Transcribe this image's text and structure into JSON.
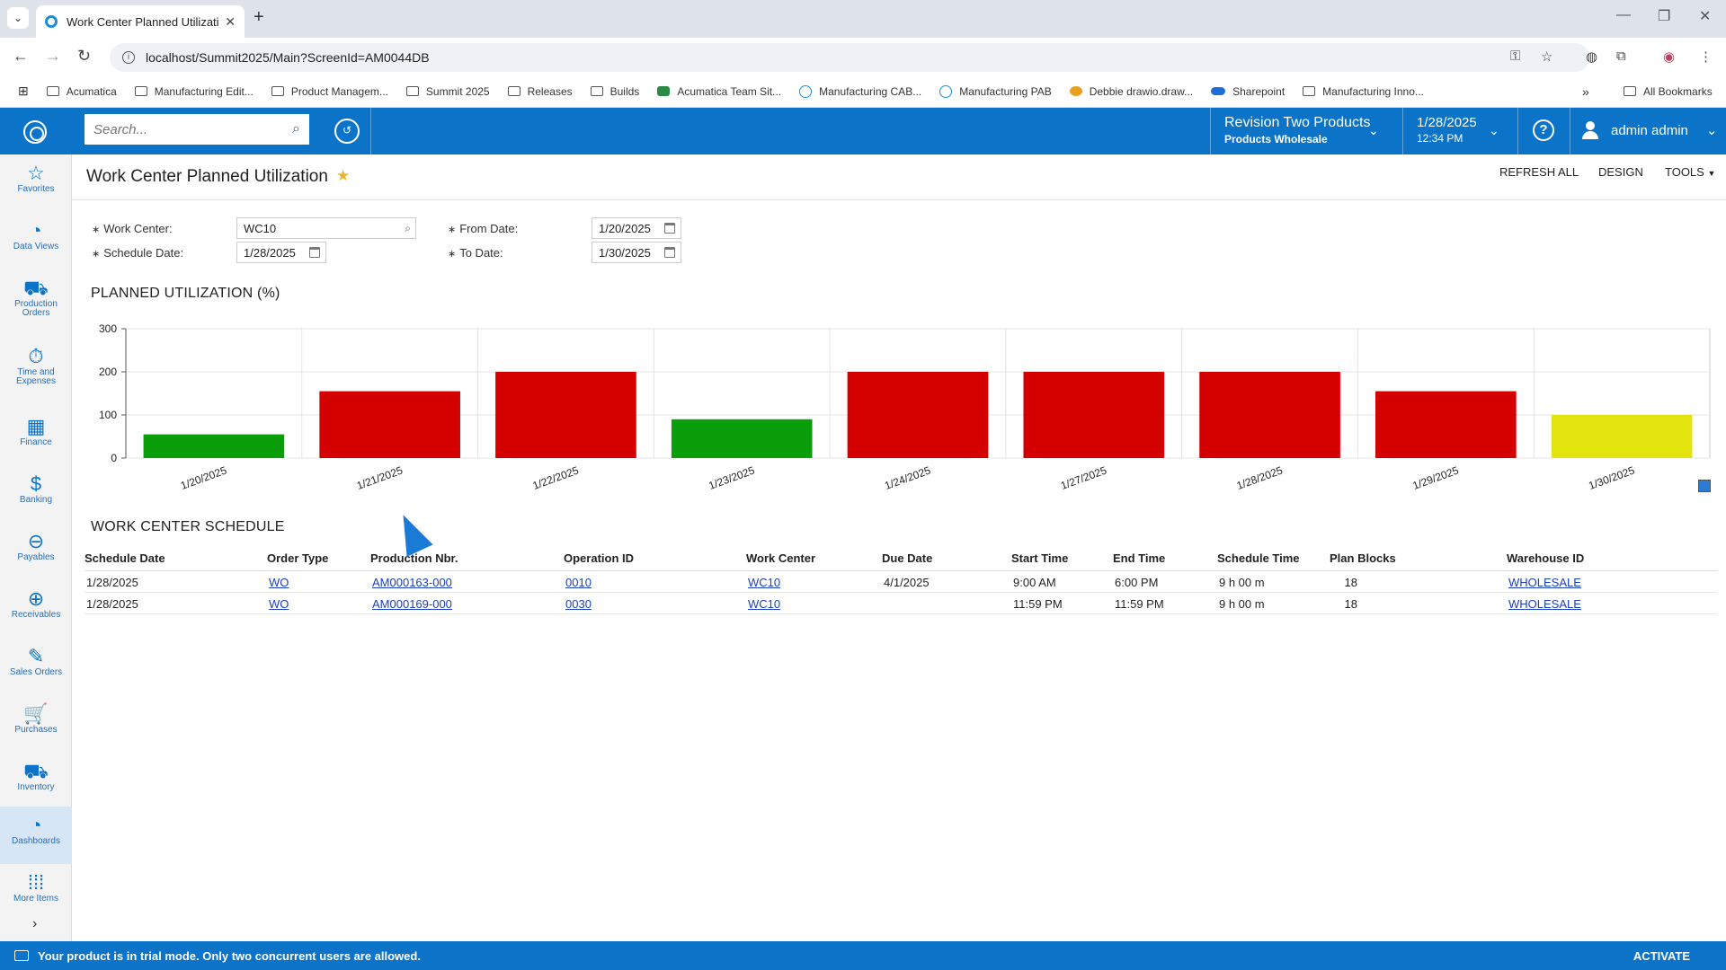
{
  "browser": {
    "tab_title": "Work Center Planned Utilization",
    "url": "localhost/Summit2025/Main?ScreenId=AM0044DB",
    "bookmarks": [
      {
        "label": "Acumatica",
        "icon": "folder-icon"
      },
      {
        "label": "Manufacturing Edit...",
        "icon": "folder-icon"
      },
      {
        "label": "Product Managem...",
        "icon": "folder-icon"
      },
      {
        "label": "Summit 2025",
        "icon": "folder-icon"
      },
      {
        "label": "Releases",
        "icon": "folder-icon"
      },
      {
        "label": "Builds",
        "icon": "folder-icon"
      },
      {
        "label": "Acumatica Team Sit...",
        "icon": "sharepoint-icon"
      },
      {
        "label": "Manufacturing CAB...",
        "icon": "acumatica-icon"
      },
      {
        "label": "Manufacturing PAB",
        "icon": "acumatica-icon"
      },
      {
        "label": "Debbie drawio.draw...",
        "icon": "drawio-icon"
      },
      {
        "label": "Sharepoint",
        "icon": "cloud-icon"
      },
      {
        "label": "Manufacturing Inno...",
        "icon": "nist-icon"
      }
    ],
    "all_bookmarks": "All Bookmarks"
  },
  "header": {
    "search_placeholder": "Search...",
    "company": "Revision Two Products",
    "branch": "Products Wholesale",
    "date": "1/28/2025",
    "time": "12:34 PM",
    "user": "admin admin"
  },
  "nav": [
    {
      "label": "Favorites",
      "icon": "star-icon",
      "glyph": "☆"
    },
    {
      "label": "Data Views",
      "icon": "pie-chart-icon",
      "glyph": "◔"
    },
    {
      "label": "Production Orders",
      "icon": "truck-icon",
      "glyph": "⛟"
    },
    {
      "label": "Time and Expenses",
      "icon": "stopwatch-icon",
      "glyph": "⏱"
    },
    {
      "label": "Finance",
      "icon": "calculator-icon",
      "glyph": "▦"
    },
    {
      "label": "Banking",
      "icon": "dollar-icon",
      "glyph": "$"
    },
    {
      "label": "Payables",
      "icon": "minus-circle-icon",
      "glyph": "⊖"
    },
    {
      "label": "Receivables",
      "icon": "plus-circle-icon",
      "glyph": "⊕"
    },
    {
      "label": "Sales Orders",
      "icon": "pencil-icon",
      "glyph": "✎"
    },
    {
      "label": "Purchases",
      "icon": "cart-icon",
      "glyph": "🛒"
    },
    {
      "label": "Inventory",
      "icon": "truck-icon",
      "glyph": "⛟"
    },
    {
      "label": "Dashboards",
      "icon": "dashboard-icon",
      "glyph": "◔"
    },
    {
      "label": "More Items",
      "icon": "grid-icon",
      "glyph": "⁞⁞⁞"
    }
  ],
  "page": {
    "title": "Work Center Planned Utilization",
    "toolbar": {
      "refresh": "REFRESH ALL",
      "design": "DESIGN",
      "tools": "TOOLS"
    }
  },
  "filters": {
    "work_center_label": "Work Center:",
    "work_center_value": "WC10",
    "schedule_date_label": "Schedule Date:",
    "schedule_date_value": "1/28/2025",
    "from_date_label": "From Date:",
    "from_date_value": "1/20/2025",
    "to_date_label": "To Date:",
    "to_date_value": "1/30/2025"
  },
  "chart_title": "PLANNED UTILIZATION (%)",
  "chart_data": {
    "type": "bar",
    "categories": [
      "1/20/2025",
      "1/21/2025",
      "1/22/2025",
      "1/23/2025",
      "1/24/2025",
      "1/27/2025",
      "1/28/2025",
      "1/29/2025",
      "1/30/2025"
    ],
    "values": [
      55,
      155,
      200,
      90,
      200,
      200,
      200,
      155,
      100
    ],
    "colors": [
      "#0a9e0a",
      "#d40000",
      "#d40000",
      "#0a9e0a",
      "#d40000",
      "#d40000",
      "#d40000",
      "#d40000",
      "#e3e30e"
    ],
    "ylim": [
      0,
      300
    ],
    "yticks": [
      0,
      100,
      200,
      300
    ],
    "grid": true
  },
  "schedule": {
    "title": "WORK CENTER SCHEDULE",
    "columns": [
      "Schedule Date",
      "Order Type",
      "Production Nbr.",
      "Operation ID",
      "Work Center",
      "Due Date",
      "Start Time",
      "End Time",
      "Schedule Time",
      "Plan Blocks",
      "Warehouse ID"
    ],
    "rows": [
      [
        "1/28/2025",
        "WO",
        "AM000163-000",
        "0010",
        "WC10",
        "4/1/2025",
        "9:00 AM",
        "6:00 PM",
        "9 h 00 m",
        "18",
        "WHOLESALE"
      ],
      [
        "1/28/2025",
        "WO",
        "AM000169-000",
        "0030",
        "WC10",
        "",
        "11:59 PM",
        "11:59 PM",
        "9 h 00 m",
        "18",
        "WHOLESALE"
      ]
    ]
  },
  "trial": {
    "message": "Your product is in trial mode. Only two concurrent users are allowed.",
    "activate": "ACTIVATE"
  }
}
